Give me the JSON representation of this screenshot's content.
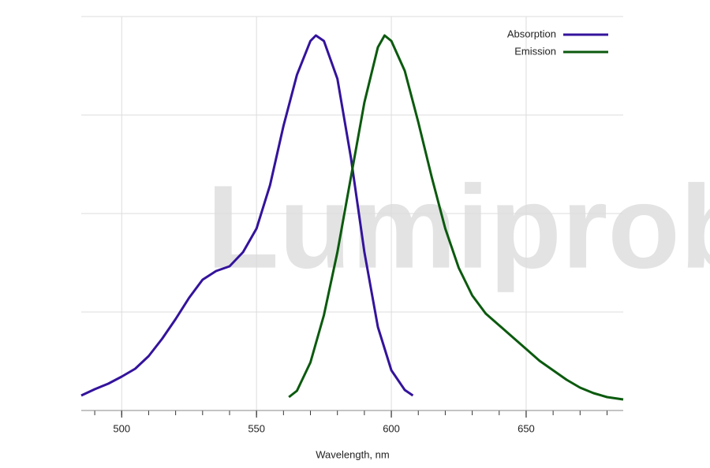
{
  "chart_data": {
    "type": "line",
    "watermark": "Lumiprobe",
    "xlabel": "Wavelength, nm",
    "xlim": [
      485,
      686
    ],
    "xticks": [
      500,
      550,
      600,
      650
    ],
    "xminor": [
      490,
      500,
      510,
      520,
      530,
      540,
      550,
      560,
      570,
      580,
      590,
      600,
      610,
      620,
      630,
      640,
      650,
      660,
      670,
      680
    ],
    "ylim": [
      0,
      1
    ],
    "yticks": [
      0,
      0.25,
      0.5,
      0.75,
      1
    ],
    "grid": true,
    "legend": "upper right",
    "series": [
      {
        "name": "Absorption",
        "color": "#33139c",
        "x": [
          485,
          490,
          495,
          500,
          505,
          510,
          515,
          520,
          525,
          530,
          535,
          540,
          545,
          550,
          555,
          560,
          565,
          570,
          572,
          575,
          580,
          585,
          590,
          595,
          600,
          605,
          608
        ],
        "values": [
          0.038,
          0.054,
          0.068,
          0.086,
          0.106,
          0.138,
          0.182,
          0.232,
          0.286,
          0.332,
          0.354,
          0.366,
          0.402,
          0.462,
          0.572,
          0.722,
          0.852,
          0.938,
          0.952,
          0.938,
          0.842,
          0.642,
          0.402,
          0.212,
          0.102,
          0.052,
          0.038
        ]
      },
      {
        "name": "Emission",
        "color": "#0b5a0e",
        "x": [
          562,
          565,
          570,
          575,
          580,
          585,
          590,
          595,
          597.5,
          600,
          605,
          610,
          615,
          620,
          625,
          630,
          635,
          640,
          645,
          650,
          655,
          660,
          665,
          670,
          675,
          680,
          686
        ],
        "values": [
          0.034,
          0.05,
          0.122,
          0.242,
          0.402,
          0.592,
          0.782,
          0.922,
          0.952,
          0.938,
          0.862,
          0.732,
          0.592,
          0.462,
          0.362,
          0.292,
          0.246,
          0.216,
          0.186,
          0.156,
          0.126,
          0.102,
          0.078,
          0.058,
          0.044,
          0.034,
          0.028
        ]
      }
    ]
  }
}
